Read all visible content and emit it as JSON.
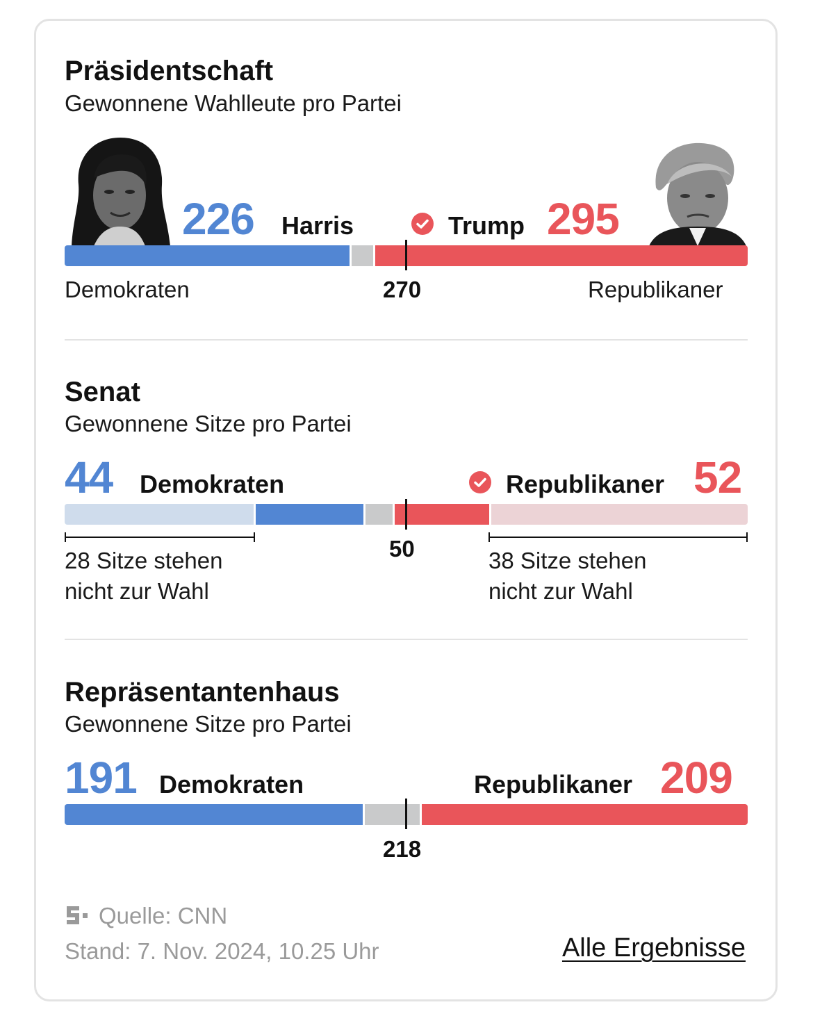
{
  "colors": {
    "dem": "#5286d3",
    "rep": "#e9555a",
    "dem_light": "#cfdcec",
    "rep_light": "#ecd3d6",
    "undecided": "#c9cacb",
    "border": "#e3e3e3",
    "muted": "#9a9a9a"
  },
  "sections": {
    "president": {
      "title": "Präsidentschaft",
      "subtitle": "Gewonnene Wahlleute pro Partei",
      "dem_value": "226",
      "dem_name": "Harris",
      "rep_value": "295",
      "rep_name": "Trump",
      "left_label": "Demokraten",
      "right_label": "Republikaner",
      "threshold": "270",
      "winner_icon": "check-circle-icon",
      "dem_portrait_icon": "harris-portrait-icon",
      "rep_portrait_icon": "trump-portrait-icon"
    },
    "senate": {
      "title": "Senat",
      "subtitle": "Gewonnene Sitze pro Partei",
      "dem_value": "44",
      "dem_name": "Demokraten",
      "rep_value": "52",
      "rep_name": "Republikaner",
      "threshold": "50",
      "dem_not_up": "28 Sitze stehen nicht zur Wahl",
      "rep_not_up": "38 Sitze stehen nicht zur Wahl",
      "winner_icon": "check-circle-icon"
    },
    "house": {
      "title": "Repräsentantenhaus",
      "subtitle": "Gewonnene Sitze pro Partei",
      "dem_value": "191",
      "dem_name": "Demokraten",
      "rep_value": "209",
      "rep_name": "Republikaner",
      "threshold": "218"
    }
  },
  "chart_data": [
    {
      "type": "bar",
      "orientation": "stacked-horizontal",
      "categories": [
        "Demokraten",
        "offen",
        "Republikaner"
      ],
      "values": [
        226,
        17,
        295
      ],
      "total": 538,
      "threshold": 270
    },
    {
      "type": "bar",
      "orientation": "stacked-horizontal",
      "categories": [
        "Demokraten (nicht zur Wahl)",
        "Demokraten (gewählt)",
        "offen",
        "Republikaner (gewählt)",
        "Republikaner (nicht zur Wahl)"
      ],
      "values": [
        28,
        16,
        4,
        14,
        38
      ],
      "total": 100,
      "threshold": 50
    },
    {
      "type": "bar",
      "orientation": "stacked-horizontal",
      "categories": [
        "Demokraten",
        "offen",
        "Republikaner"
      ],
      "values": [
        191,
        35,
        209
      ],
      "total": 435,
      "threshold": 218
    }
  ],
  "footer": {
    "logo_icon": "spiegel-s-logo-icon",
    "source": "Quelle: CNN",
    "stand": "Stand: 7. Nov. 2024, 10.25 Uhr",
    "link": "Alle Ergebnisse"
  }
}
